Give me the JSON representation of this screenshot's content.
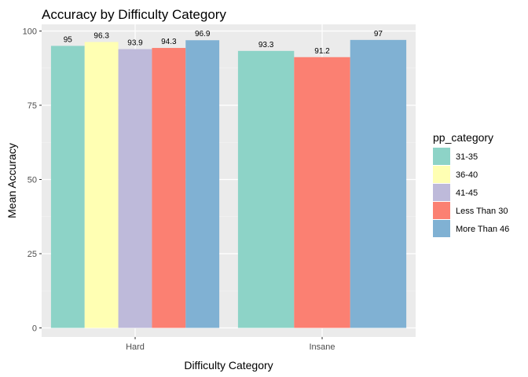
{
  "chart_data": {
    "type": "bar",
    "title": "Accuracy by Difficulty Category",
    "xlabel": "Difficulty Category",
    "ylabel": "Mean Accuracy",
    "ylim": [
      0,
      100
    ],
    "yticks": [
      0,
      25,
      50,
      75,
      100
    ],
    "grid": true,
    "legend_placement": "right",
    "legend_title": "pp_category",
    "series": [
      {
        "name": "31-35",
        "color": "#8DD3C7"
      },
      {
        "name": "36-40",
        "color": "#FFFFB3"
      },
      {
        "name": "41-45",
        "color": "#BEBADA"
      },
      {
        "name": "Less Than 30",
        "color": "#FB8072"
      },
      {
        "name": "More Than 46",
        "color": "#80B1D3"
      }
    ],
    "categories": [
      {
        "name": "Hard",
        "bars": [
          {
            "series": "31-35",
            "value": 95,
            "label": "95"
          },
          {
            "series": "36-40",
            "value": 96.3,
            "label": "96.3"
          },
          {
            "series": "41-45",
            "value": 93.9,
            "label": "93.9"
          },
          {
            "series": "Less Than 30",
            "value": 94.3,
            "label": "94.3"
          },
          {
            "series": "More Than 46",
            "value": 96.9,
            "label": "96.9"
          }
        ]
      },
      {
        "name": "Insane",
        "bars": [
          {
            "series": "31-35",
            "value": 93.3,
            "label": "93.3"
          },
          {
            "series": "Less Than 30",
            "value": 91.2,
            "label": "91.2"
          },
          {
            "series": "More Than 46",
            "value": 97,
            "label": "97"
          }
        ]
      }
    ]
  }
}
